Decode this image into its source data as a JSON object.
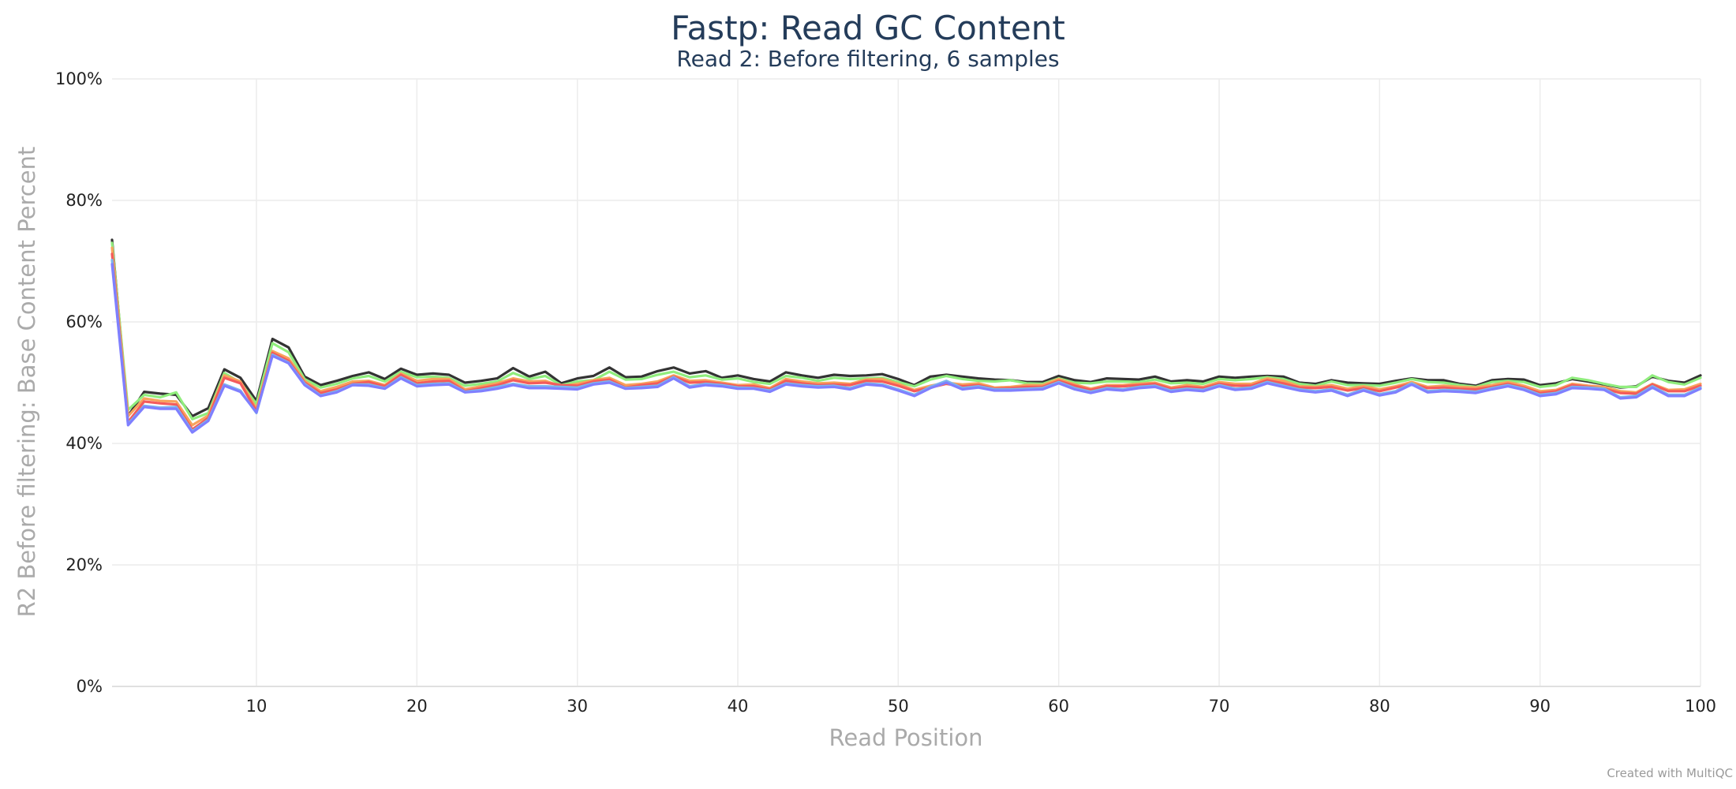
{
  "chart_data": {
    "type": "line",
    "title": "Fastp: Read GC Content",
    "subtitle": "Read 2: Before filtering, 6 samples",
    "xlabel": "Read Position",
    "ylabel": "R2 Before filtering: Base Content Percent",
    "xlim": [
      1,
      100
    ],
    "ylim": [
      0,
      100
    ],
    "x_ticks": [
      10,
      20,
      30,
      40,
      50,
      60,
      70,
      80,
      90,
      100
    ],
    "y_ticks": [
      0,
      20,
      40,
      60,
      80,
      100
    ],
    "x_tick_labels": [
      "10",
      "20",
      "30",
      "40",
      "50",
      "60",
      "70",
      "80",
      "90",
      "100"
    ],
    "y_tick_labels": [
      "0%",
      "20%",
      "40%",
      "60%",
      "80%",
      "100%"
    ],
    "grid": true,
    "legend": "none",
    "x": [
      1,
      2,
      3,
      4,
      5,
      6,
      7,
      8,
      9,
      10,
      11,
      12,
      13,
      14,
      15,
      16,
      17,
      18,
      19,
      20,
      21,
      22,
      23,
      24,
      25,
      26,
      27,
      28,
      29,
      30,
      31,
      32,
      33,
      34,
      35,
      36,
      37,
      38,
      39,
      40,
      41,
      42,
      43,
      44,
      45,
      46,
      47,
      48,
      49,
      50,
      51,
      52,
      53,
      54,
      55,
      56,
      57,
      58,
      59,
      60,
      61,
      62,
      63,
      64,
      65,
      66,
      67,
      68,
      69,
      70,
      71,
      72,
      73,
      74,
      75,
      76,
      77,
      78,
      79,
      80,
      81,
      82,
      83,
      84,
      85,
      86,
      87,
      88,
      89,
      90,
      91,
      92,
      93,
      94,
      95,
      96,
      97,
      98,
      99,
      100
    ],
    "series": [
      {
        "color": "#333333",
        "values": [
          73.5,
          44.5,
          48.5,
          48.2,
          48.0,
          44.5,
          45.8,
          52.2,
          50.8,
          47.0,
          57.2,
          55.8,
          51.0,
          49.6,
          50.3,
          51.1,
          51.7,
          50.6,
          52.3,
          51.3,
          51.5,
          51.3,
          50.0,
          50.3,
          50.7,
          52.4,
          51.0,
          51.8,
          49.9,
          50.7,
          51.1,
          52.5,
          50.9,
          51.0,
          51.9,
          52.5,
          51.5,
          51.9,
          50.8,
          51.2,
          50.6,
          50.2,
          51.7,
          51.2,
          50.8,
          51.3,
          51.1,
          51.2,
          51.4,
          50.6,
          49.6,
          51.0,
          51.3,
          51.0,
          50.7,
          50.5,
          50.4,
          50.1,
          50.1,
          51.1,
          50.4,
          50.1,
          50.7,
          50.6,
          50.5,
          51.0,
          50.2,
          50.4,
          50.2,
          51.0,
          50.8,
          51.0,
          51.1,
          51.0,
          50.0,
          49.8,
          50.4,
          50.0,
          49.9,
          49.8,
          50.3,
          50.7,
          50.4,
          50.4,
          49.8,
          49.5,
          50.4,
          50.6,
          50.5,
          49.6,
          49.9,
          50.6,
          50.2,
          49.7,
          49.2,
          49.4,
          51.0,
          50.3,
          50.0,
          51.2
        ]
      },
      {
        "color": "#90ed7d",
        "values": [
          73.0,
          45.5,
          48.0,
          47.6,
          48.4,
          44.0,
          45.0,
          51.6,
          50.0,
          46.5,
          56.5,
          55.0,
          50.6,
          49.2,
          49.8,
          50.7,
          51.1,
          50.2,
          51.8,
          50.9,
          51.0,
          50.8,
          49.5,
          49.8,
          50.2,
          51.6,
          50.6,
          51.1,
          49.6,
          50.2,
          50.4,
          51.8,
          50.5,
          50.6,
          51.3,
          51.8,
          50.9,
          51.2,
          50.5,
          50.7,
          50.1,
          49.8,
          51.1,
          50.8,
          50.3,
          50.8,
          50.6,
          50.7,
          50.8,
          50.1,
          49.4,
          50.5,
          51.1,
          50.6,
          50.3,
          50.2,
          50.4,
          49.9,
          49.8,
          50.7,
          50.0,
          49.9,
          50.2,
          50.2,
          50.1,
          50.5,
          49.9,
          50.0,
          49.8,
          50.6,
          50.4,
          50.6,
          50.9,
          50.6,
          49.8,
          49.5,
          50.2,
          49.6,
          49.6,
          49.5,
          50.0,
          50.6,
          50.1,
          50.0,
          49.6,
          49.3,
          50.1,
          50.3,
          50.1,
          49.3,
          49.6,
          50.8,
          50.4,
          49.8,
          49.3,
          49.3,
          51.2,
          50.1,
          49.7,
          50.8
        ]
      },
      {
        "color": "#f7a35c",
        "values": [
          72.2,
          44.5,
          47.4,
          47.0,
          46.9,
          43.0,
          44.6,
          51.2,
          50.2,
          45.7,
          55.2,
          54.0,
          50.3,
          48.6,
          49.3,
          50.2,
          50.3,
          49.6,
          51.5,
          50.3,
          50.6,
          50.6,
          48.9,
          49.4,
          49.9,
          50.7,
          50.2,
          50.3,
          49.4,
          49.8,
          50.4,
          50.8,
          49.6,
          49.8,
          50.2,
          51.2,
          50.3,
          50.4,
          50.0,
          49.6,
          49.7,
          49.1,
          50.6,
          50.2,
          49.9,
          50.0,
          49.8,
          50.5,
          50.6,
          49.8,
          48.8,
          49.5,
          50.0,
          49.7,
          49.9,
          49.2,
          49.3,
          49.6,
          49.6,
          50.6,
          49.7,
          49.0,
          49.6,
          49.6,
          49.8,
          50.0,
          49.2,
          49.6,
          49.3,
          50.1,
          49.8,
          49.8,
          50.7,
          50.3,
          49.4,
          49.3,
          49.6,
          49.0,
          49.4,
          48.9,
          49.4,
          50.1,
          49.3,
          49.5,
          49.3,
          49.2,
          49.6,
          50.1,
          49.5,
          48.6,
          48.8,
          49.8,
          49.5,
          49.3,
          48.6,
          48.4,
          49.8,
          48.8,
          48.9,
          49.8
        ]
      },
      {
        "color": "#f45b5b",
        "values": [
          71.2,
          43.5,
          46.9,
          46.6,
          46.4,
          42.3,
          44.2,
          50.8,
          49.9,
          45.3,
          54.9,
          53.6,
          50.0,
          48.3,
          48.9,
          49.8,
          50.1,
          49.4,
          51.3,
          49.9,
          50.2,
          50.3,
          48.6,
          49.1,
          49.6,
          50.4,
          49.9,
          50.0,
          49.6,
          49.5,
          50.2,
          50.5,
          49.2,
          49.6,
          49.9,
          51.0,
          50.0,
          50.1,
          49.8,
          49.4,
          49.4,
          48.9,
          50.3,
          49.9,
          49.6,
          49.7,
          49.6,
          50.3,
          50.2,
          49.5,
          48.6,
          49.2,
          49.8,
          49.4,
          49.6,
          49.0,
          49.1,
          49.3,
          49.3,
          50.3,
          49.5,
          48.8,
          49.4,
          49.4,
          49.6,
          49.8,
          49.0,
          49.3,
          49.1,
          49.8,
          49.5,
          49.5,
          50.4,
          49.9,
          49.2,
          49.1,
          49.3,
          48.7,
          49.1,
          48.6,
          49.2,
          49.8,
          49.1,
          49.2,
          49.0,
          48.9,
          49.3,
          49.8,
          49.2,
          48.3,
          48.6,
          49.6,
          49.3,
          49.0,
          48.3,
          48.2,
          49.7,
          48.6,
          48.6,
          49.5
        ]
      },
      {
        "color": "#7cb5ec",
        "values": [
          70.2,
          43.2,
          46.2,
          45.9,
          46.0,
          42.0,
          43.9,
          49.7,
          48.7,
          45.0,
          54.6,
          53.3,
          49.8,
          47.9,
          48.6,
          49.7,
          49.7,
          49.1,
          50.9,
          49.6,
          49.8,
          49.9,
          48.5,
          48.8,
          49.3,
          49.8,
          49.4,
          49.4,
          49.3,
          49.2,
          49.9,
          50.2,
          49.1,
          49.3,
          49.5,
          50.9,
          49.4,
          49.8,
          49.6,
          49.2,
          49.1,
          48.7,
          49.9,
          49.6,
          49.4,
          49.5,
          49.1,
          49.9,
          49.7,
          48.9,
          48.0,
          49.3,
          50.3,
          49.1,
          49.4,
          48.9,
          48.9,
          49.0,
          49.1,
          50.1,
          49.1,
          48.5,
          49.1,
          48.9,
          49.3,
          49.5,
          48.7,
          49.0,
          48.8,
          49.6,
          49.0,
          49.2,
          50.1,
          49.5,
          48.9,
          48.6,
          48.9,
          48.0,
          48.9,
          48.1,
          48.6,
          49.9,
          48.6,
          48.8,
          48.7,
          48.5,
          49.1,
          49.6,
          49.0,
          48.0,
          48.3,
          49.3,
          49.2,
          49.0,
          47.6,
          47.8,
          49.4,
          48.0,
          48.0,
          49.2
        ]
      },
      {
        "color": "#7f7fff",
        "values": [
          69.5,
          43.0,
          46.0,
          45.7,
          45.7,
          41.8,
          43.7,
          49.5,
          48.5,
          45.1,
          54.4,
          53.2,
          49.6,
          47.8,
          48.4,
          49.6,
          49.5,
          49.0,
          50.7,
          49.4,
          49.6,
          49.7,
          48.4,
          48.6,
          49.0,
          49.6,
          49.1,
          49.1,
          49.0,
          48.9,
          49.7,
          50.0,
          49.0,
          49.1,
          49.3,
          50.7,
          49.2,
          49.6,
          49.4,
          49.0,
          49.0,
          48.5,
          49.7,
          49.4,
          49.2,
          49.3,
          48.9,
          49.7,
          49.5,
          48.7,
          47.8,
          49.1,
          50.0,
          48.9,
          49.2,
          48.7,
          48.7,
          48.8,
          48.9,
          49.9,
          48.9,
          48.3,
          48.9,
          48.7,
          49.1,
          49.3,
          48.5,
          48.8,
          48.6,
          49.4,
          48.8,
          49.0,
          49.9,
          49.3,
          48.7,
          48.4,
          48.7,
          47.8,
          48.7,
          47.9,
          48.4,
          49.7,
          48.4,
          48.6,
          48.5,
          48.3,
          48.9,
          49.4,
          48.8,
          47.8,
          48.1,
          49.1,
          49.0,
          48.8,
          47.4,
          47.6,
          49.2,
          47.8,
          47.8,
          49.0
        ]
      }
    ],
    "credit": "Created with MultiQC"
  }
}
